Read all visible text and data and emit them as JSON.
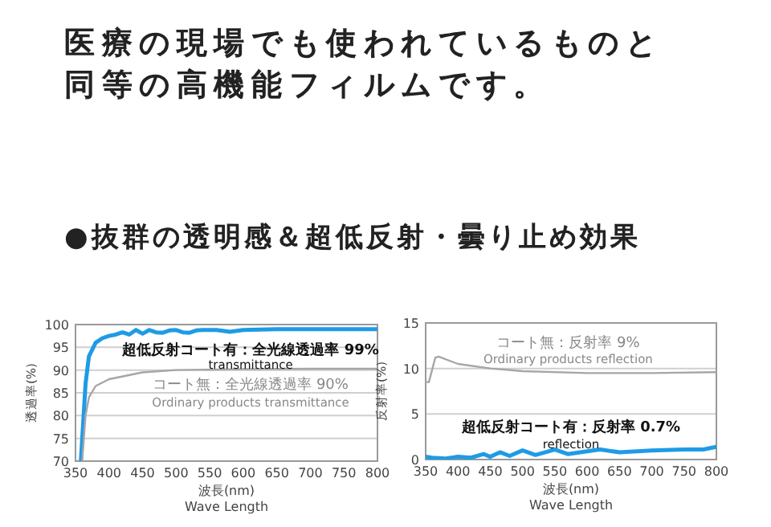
{
  "chart_data": [
    {
      "type": "line",
      "title": "医療の現場でも使われているものと同等の高機能フィルムです。",
      "subtitle": "●抜群の透明感＆超低反射・曇り止め効果",
      "xlabel": "波長(nm)\nWave Length",
      "ylabel": "透過率(%)",
      "xlim": [
        350,
        800
      ],
      "xticks": [
        350,
        400,
        450,
        500,
        550,
        600,
        650,
        700,
        750,
        800
      ],
      "ylim": [
        70,
        100
      ],
      "yticks": [
        70,
        75,
        80,
        85,
        90,
        95,
        100
      ],
      "grid": "y",
      "series": [
        {
          "color": "#1e9be6",
          "x": [
            358,
            365,
            370,
            380,
            390,
            400,
            410,
            420,
            430,
            440,
            450,
            460,
            470,
            480,
            490,
            500,
            510,
            520,
            530,
            540,
            560,
            580,
            600,
            650,
            700,
            750,
            800
          ],
          "values": [
            70,
            87,
            93,
            96,
            97,
            97.5,
            97.8,
            98.3,
            97.8,
            98.8,
            98,
            98.8,
            98.3,
            98.2,
            98.7,
            98.8,
            98.3,
            98.2,
            98.7,
            98.8,
            98.8,
            98.4,
            98.8,
            99,
            99,
            99,
            99
          ]
        },
        {
          "color": "#a6a6a6",
          "x": [
            360,
            365,
            370,
            380,
            400,
            450,
            500,
            600,
            700,
            800
          ],
          "values": [
            70,
            80,
            84,
            86.5,
            88,
            89.5,
            90,
            90.2,
            90.3,
            90.3
          ]
        }
      ],
      "annotations": [
        "超低反射コート有：全光線透過率 99%",
        "transmittance",
        "コート無：全光線透過率 90%",
        "Ordinary products transmittance"
      ]
    },
    {
      "type": "line",
      "xlabel": "波長(nm)\nWave Length",
      "ylabel": "反射率(%)",
      "xlim": [
        350,
        800
      ],
      "xticks": [
        350,
        400,
        450,
        500,
        550,
        600,
        650,
        700,
        750,
        800
      ],
      "ylim": [
        0,
        15
      ],
      "yticks": [
        0,
        5,
        10,
        15
      ],
      "grid": "y",
      "series": [
        {
          "color": "#a6a6a6",
          "x": [
            350,
            355,
            365,
            370,
            400,
            450,
            500,
            600,
            700,
            800
          ],
          "values": [
            8.5,
            8.5,
            11.2,
            11.3,
            10.5,
            10,
            9.7,
            9.5,
            9.5,
            9.6
          ]
        },
        {
          "color": "#1e9be6",
          "x": [
            350,
            360,
            380,
            400,
            420,
            440,
            450,
            465,
            480,
            500,
            520,
            550,
            570,
            600,
            620,
            650,
            700,
            750,
            780,
            800
          ],
          "values": [
            0.3,
            0.2,
            0.1,
            0.3,
            0.2,
            0.6,
            0.3,
            0.8,
            0.4,
            1.0,
            0.5,
            1.1,
            0.6,
            0.9,
            1.1,
            0.8,
            1.0,
            1.1,
            1.1,
            1.4
          ]
        }
      ],
      "annotations": [
        "コート無：反射率 9%",
        "Ordinary products reflection",
        "超低反射コート有：反射率 0.7%",
        "reflection"
      ]
    }
  ]
}
